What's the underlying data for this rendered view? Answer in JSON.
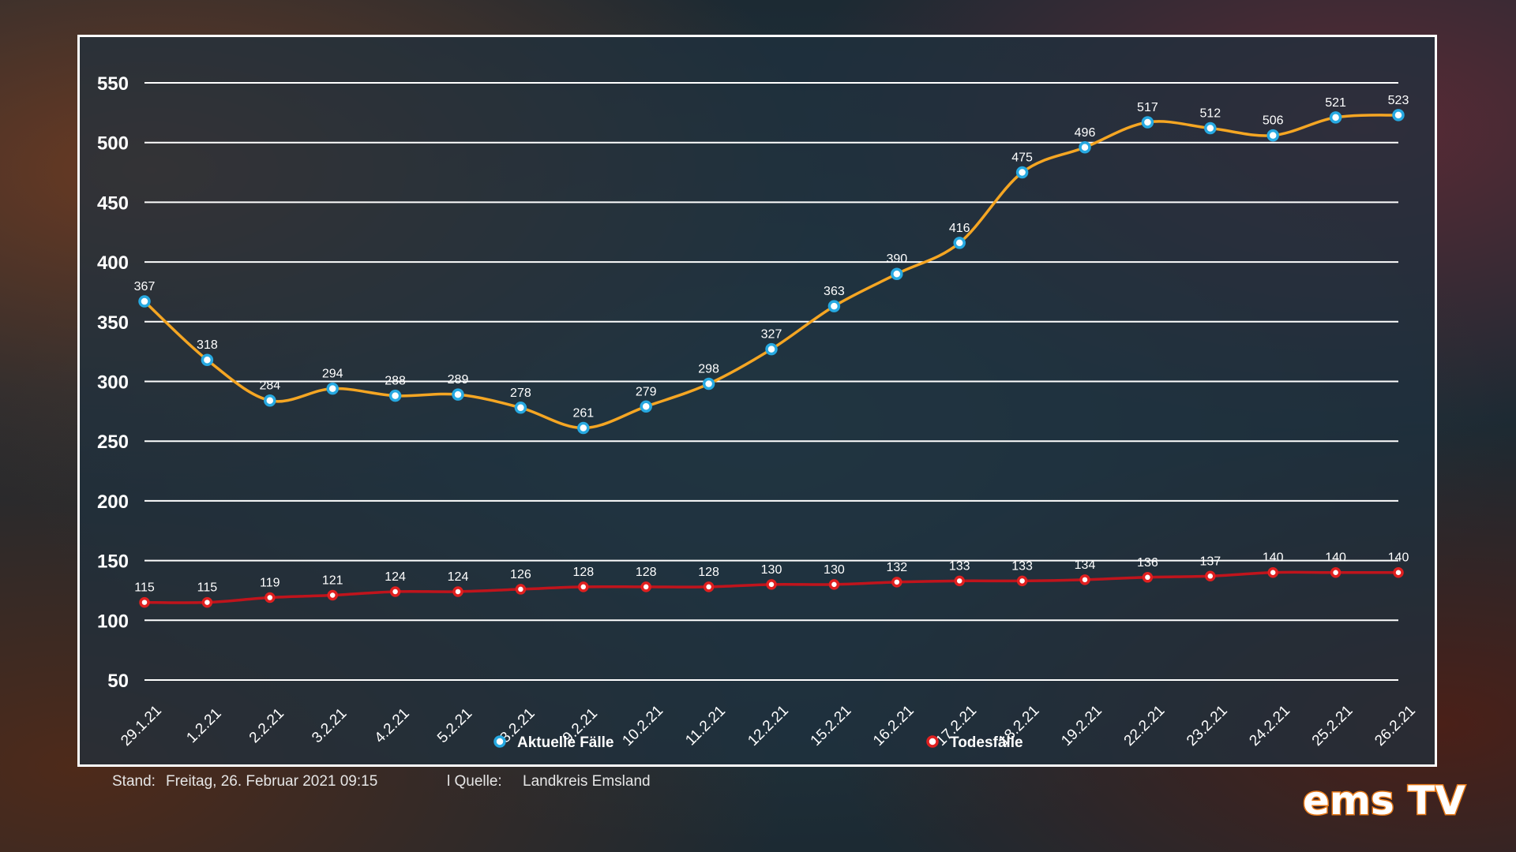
{
  "footer": {
    "stand_label": "Stand:",
    "stand_value": "Freitag, 26. Februar 2021 09:15",
    "source_label": "l Quelle:",
    "source_value": "Landkreis Emsland"
  },
  "logo": {
    "text": "ems TV"
  },
  "colors": {
    "aktuelle_line": "#f5a623",
    "aktuelle_marker": "#27a9e1",
    "tote_line": "#c0141c",
    "tote_marker": "#e02020",
    "grid": "#ffffff",
    "text": "#ffffff"
  },
  "chart_data": {
    "type": "line",
    "title": "",
    "xlabel": "",
    "ylabel": "",
    "ylim": [
      50,
      550
    ],
    "yticks": [
      50,
      100,
      150,
      200,
      250,
      300,
      350,
      400,
      450,
      500,
      550
    ],
    "grid": true,
    "legend_position": "bottom",
    "categories": [
      "29.1.21",
      "1.2.21",
      "2.2.21",
      "3.2.21",
      "4.2.21",
      "5.2.21",
      "8.2.21",
      "9.2.21",
      "10.2.21",
      "11.2.21",
      "12.2.21",
      "15.2.21",
      "16.2.21",
      "17.2.21",
      "18.2.21",
      "19.2.21",
      "22.2.21",
      "23.2.21",
      "24.2.21",
      "25.2.21",
      "26.2.21"
    ],
    "series": [
      {
        "name": "Aktuelle Fälle",
        "values": [
          367,
          318,
          284,
          294,
          288,
          289,
          278,
          261,
          279,
          298,
          327,
          363,
          390,
          416,
          475,
          496,
          517,
          512,
          506,
          521,
          523
        ]
      },
      {
        "name": "Todesfälle",
        "values": [
          115,
          115,
          119,
          121,
          124,
          124,
          126,
          128,
          128,
          128,
          130,
          130,
          132,
          133,
          133,
          134,
          136,
          137,
          140,
          140,
          140
        ]
      }
    ]
  }
}
